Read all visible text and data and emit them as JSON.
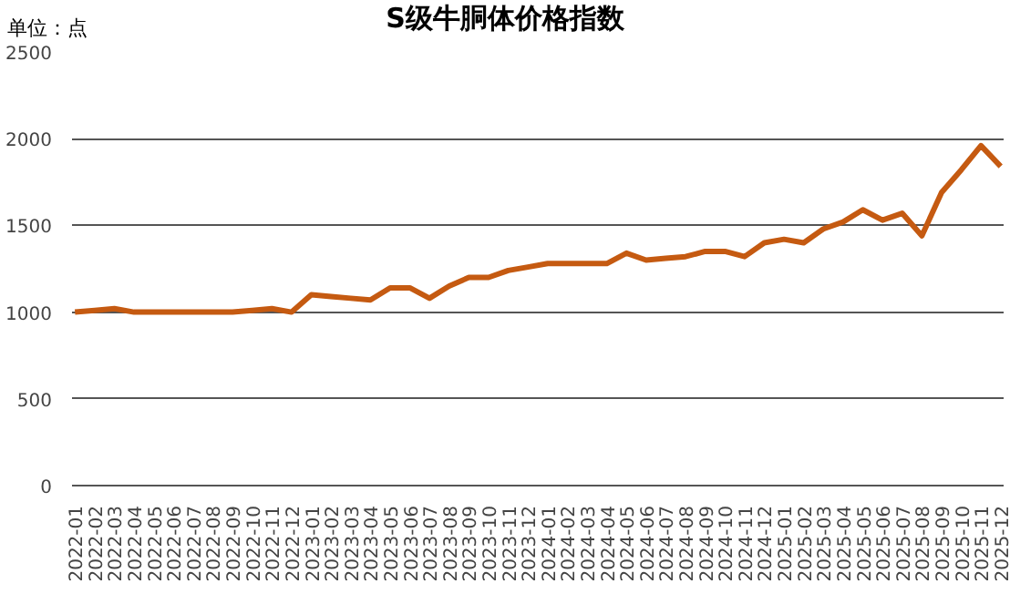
{
  "chart_data": {
    "type": "line",
    "title": "S级牛胴体价格指数",
    "annotations": [
      "单位：点"
    ],
    "categories": [
      "2022-01",
      "2022-02",
      "2022-03",
      "2022-04",
      "2022-05",
      "2022-06",
      "2022-07",
      "2022-08",
      "2022-09",
      "2022-10",
      "2022-11",
      "2022-12",
      "2023-01",
      "2023-02",
      "2023-03",
      "2023-04",
      "2023-05",
      "2023-06",
      "2023-07",
      "2023-08",
      "2023-09",
      "2023-10",
      "2023-11",
      "2023-12",
      "2024-01",
      "2024-02",
      "2024-03",
      "2024-04",
      "2024-05",
      "2024-06",
      "2024-07",
      "2024-08",
      "2024-09",
      "2024-10",
      "2024-11",
      "2024-12",
      "2025-01",
      "2025-02",
      "2025-03",
      "2025-04",
      "2025-05",
      "2025-06",
      "2025-07",
      "2025-08",
      "2025-09",
      "2025-10",
      "2025-11",
      "2025-12"
    ],
    "series": [
      {
        "color": "#c55a11",
        "values": [
          1000,
          1010,
          1020,
          1000,
          1000,
          1000,
          1000,
          1000,
          1000,
          1010,
          1020,
          1000,
          1100,
          1090,
          1080,
          1070,
          1140,
          1140,
          1080,
          1150,
          1200,
          1200,
          1240,
          1260,
          1280,
          1280,
          1280,
          1280,
          1340,
          1300,
          1310,
          1320,
          1350,
          1350,
          1320,
          1400,
          1420,
          1400,
          1480,
          1520,
          1590,
          1530,
          1570,
          1440,
          1690,
          1820,
          1960,
          1840
        ]
      }
    ],
    "ylim": [
      0,
      2500
    ],
    "yticks": [
      0,
      500,
      1000,
      1500,
      2000,
      2500
    ],
    "grid": "y",
    "marker": "none",
    "line_style": "solid"
  }
}
